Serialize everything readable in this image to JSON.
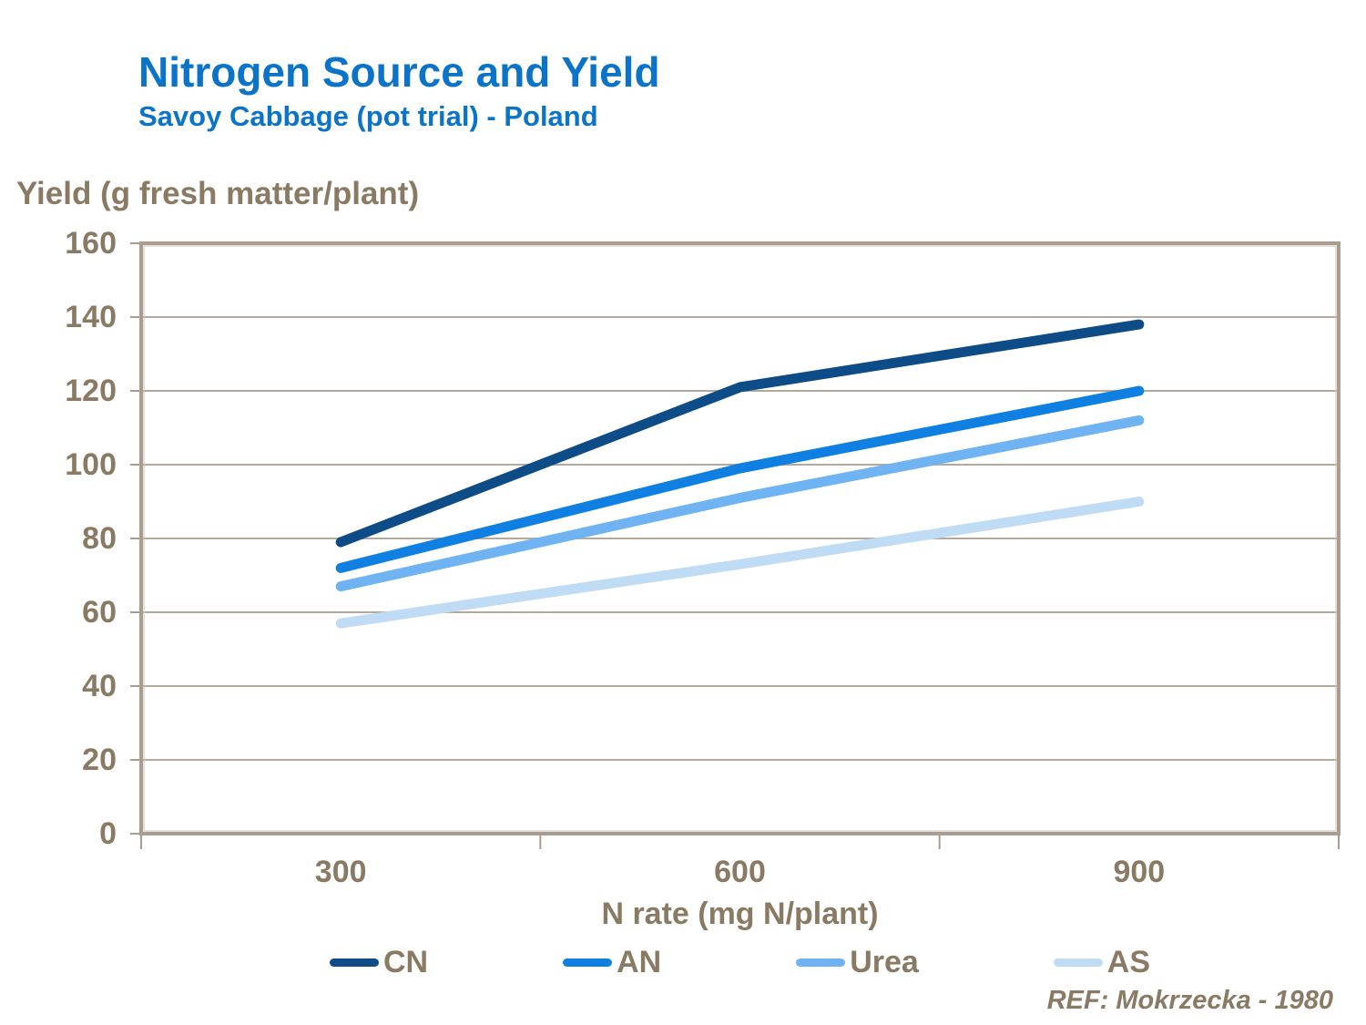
{
  "slide": {
    "title": "Nitrogen Source and Yield",
    "subtitle": "Savoy Cabbage (pot trial) - Poland",
    "reference": "REF: Mokrzecka - 1980"
  },
  "colors": {
    "title_blue": "#0C74C8",
    "axis_text": "#8A7A64",
    "gridline": "#B3AA9D",
    "plot_border": "#A89D8F"
  },
  "chart_data": {
    "type": "line",
    "title": "Nitrogen Source and Yield",
    "subtitle": "Savoy Cabbage (pot trial) - Poland",
    "xlabel": "N rate (mg N/plant)",
    "ylabel": "Yield (g fresh matter/plant)",
    "categories": [
      "300",
      "600",
      "900"
    ],
    "series": [
      {
        "name": "CN",
        "color": "#0D4C86",
        "values": [
          79,
          121,
          138
        ]
      },
      {
        "name": "AN",
        "color": "#0F80E2",
        "values": [
          72,
          99,
          120
        ]
      },
      {
        "name": "Urea",
        "color": "#6FB3F2",
        "values": [
          67,
          91,
          112
        ]
      },
      {
        "name": "AS",
        "color": "#C0DCF5",
        "values": [
          57,
          73,
          90
        ]
      }
    ],
    "ylim": [
      0,
      160
    ],
    "ytick_step": 20,
    "grid": "horizontal",
    "legend_position": "bottom",
    "line_width": 11
  }
}
